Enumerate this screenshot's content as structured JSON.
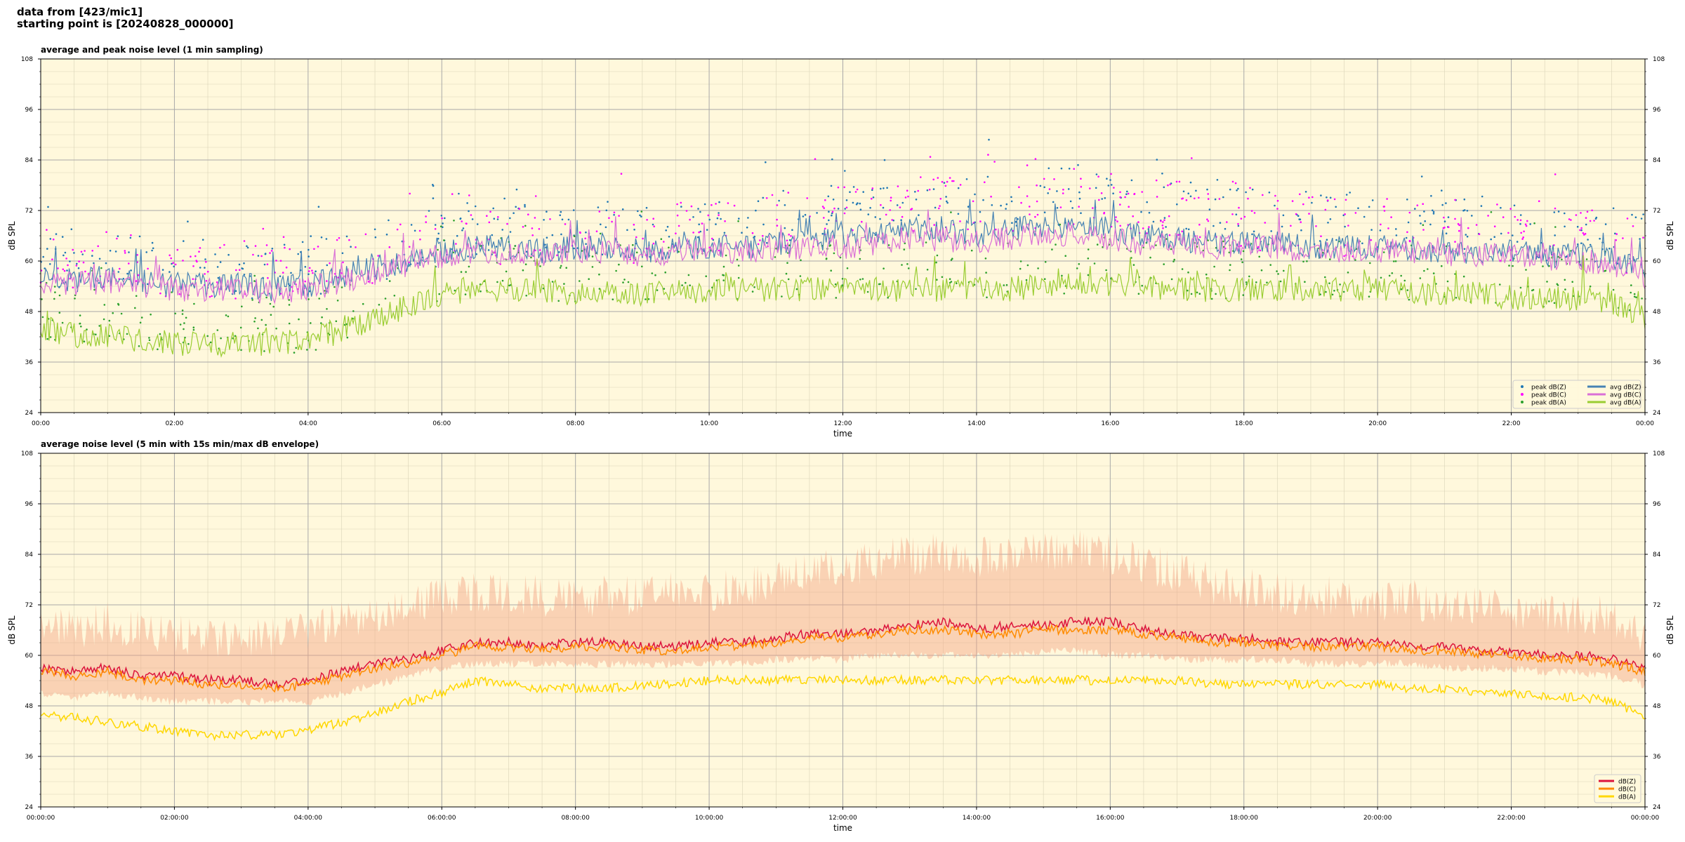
{
  "header": {
    "line1": "data from [423/mic1]",
    "line2": "starting point is [20240828_000000]"
  },
  "chart_data": [
    {
      "type": "line",
      "title": "average and peak noise level (1 min sampling)",
      "xlabel": "time",
      "ylabel": "dB SPL",
      "ylabel_right": "dB SPL",
      "xlim_hours": [
        0,
        24
      ],
      "ylim": [
        24,
        108
      ],
      "yticks": [
        24,
        36,
        48,
        60,
        72,
        84,
        96,
        108
      ],
      "xtick_labels": [
        "00:00",
        "02:00",
        "04:00",
        "06:00",
        "08:00",
        "10:00",
        "12:00",
        "14:00",
        "16:00",
        "18:00",
        "20:00",
        "22:00",
        "00:00"
      ],
      "background": "#fff8dc",
      "grid": true,
      "legend_position": "bottom-right",
      "legend_columns": 2,
      "x_hours": [
        0,
        0.5,
        1,
        1.5,
        2,
        2.5,
        3,
        3.5,
        4,
        4.5,
        5,
        5.5,
        6,
        6.5,
        7,
        7.5,
        8,
        8.5,
        9,
        9.5,
        10,
        10.5,
        11,
        11.5,
        12,
        12.5,
        13,
        13.5,
        14,
        14.5,
        15,
        15.5,
        16,
        16.5,
        17,
        17.5,
        18,
        18.5,
        19,
        19.5,
        20,
        20.5,
        21,
        21.5,
        22,
        22.5,
        23,
        23.5,
        24
      ],
      "series": [
        {
          "name": "peak dB(Z)",
          "kind": "scatter",
          "color": "#1f77b4",
          "values": [
            60,
            60,
            61,
            60,
            59,
            58,
            58,
            58,
            58,
            60,
            62,
            64,
            66,
            67,
            67,
            67,
            68,
            68,
            67,
            68,
            68,
            69,
            70,
            71,
            72,
            73,
            75,
            75,
            74,
            75,
            75,
            76,
            75,
            74,
            73,
            71,
            70,
            70,
            70,
            69,
            69,
            69,
            69,
            68,
            68,
            67,
            67,
            66,
            64
          ]
        },
        {
          "name": "peak dB(C)",
          "kind": "scatter",
          "color": "#ff00ff",
          "values": [
            59,
            59,
            60,
            59,
            58,
            57,
            57,
            57,
            57,
            59,
            61,
            63,
            65,
            66,
            66,
            66,
            67,
            67,
            66,
            67,
            67,
            68,
            69,
            70,
            71,
            72,
            74,
            74,
            73,
            74,
            74,
            75,
            74,
            73,
            72,
            70,
            69,
            69,
            69,
            68,
            68,
            68,
            68,
            67,
            67,
            66,
            66,
            65,
            63
          ]
        },
        {
          "name": "peak dB(A)",
          "kind": "scatter",
          "color": "#2ca02c",
          "values": [
            48,
            47,
            47,
            46,
            46,
            45,
            45,
            45,
            45,
            48,
            51,
            54,
            57,
            58,
            58,
            58,
            57,
            57,
            57,
            57,
            58,
            58,
            58,
            58,
            58,
            58,
            58,
            58,
            58,
            58,
            59,
            59,
            59,
            59,
            58,
            58,
            58,
            58,
            58,
            58,
            58,
            57,
            57,
            57,
            57,
            56,
            56,
            55,
            52
          ]
        },
        {
          "name": "avg dB(Z)",
          "kind": "line",
          "color": "#4682b4",
          "values": [
            56,
            55,
            56,
            55,
            54,
            54,
            54,
            53,
            54,
            56,
            58,
            60,
            62,
            63,
            63,
            62,
            63,
            63,
            62,
            63,
            63,
            63,
            64,
            65,
            65,
            66,
            67,
            67,
            66,
            67,
            68,
            68,
            67,
            66,
            65,
            64,
            64,
            64,
            63,
            63,
            63,
            63,
            62,
            62,
            62,
            61,
            61,
            60,
            57
          ]
        },
        {
          "name": "avg dB(C)",
          "kind": "line",
          "color": "#da70d6",
          "values": [
            55,
            54,
            55,
            54,
            53,
            53,
            53,
            52,
            53,
            55,
            57,
            59,
            61,
            62,
            62,
            61,
            62,
            62,
            61,
            62,
            62,
            62,
            63,
            63,
            63,
            64,
            65,
            65,
            64,
            65,
            66,
            66,
            65,
            64,
            64,
            63,
            63,
            63,
            62,
            62,
            62,
            62,
            61,
            61,
            61,
            60,
            60,
            59,
            56
          ]
        },
        {
          "name": "avg dB(A)",
          "kind": "line",
          "color": "#9acd32",
          "values": [
            44,
            42,
            42,
            41,
            40,
            40,
            40,
            40,
            41,
            43,
            46,
            49,
            52,
            53,
            53,
            53,
            52,
            52,
            52,
            52,
            53,
            53,
            53,
            53,
            53,
            53,
            53,
            53,
            53,
            53,
            54,
            54,
            54,
            54,
            53,
            53,
            53,
            53,
            53,
            53,
            53,
            52,
            52,
            52,
            51,
            51,
            51,
            50,
            46
          ]
        }
      ]
    },
    {
      "type": "area",
      "title": "average noise level (5 min with 15s min/max dB envelope)",
      "xlabel": "time",
      "ylabel": "dB SPL",
      "ylabel_right": "dB SPL",
      "xlim_hours": [
        0,
        24
      ],
      "ylim": [
        24,
        108
      ],
      "yticks": [
        24,
        36,
        48,
        60,
        72,
        84,
        96,
        108
      ],
      "xtick_labels": [
        "00:00:00",
        "02:00:00",
        "04:00:00",
        "06:00:00",
        "08:00:00",
        "10:00:00",
        "12:00:00",
        "14:00:00",
        "16:00:00",
        "18:00:00",
        "20:00:00",
        "22:00:00",
        "00:00:00"
      ],
      "background": "#fff8dc",
      "grid": true,
      "legend_position": "bottom-right",
      "legend_columns": 1,
      "x_hours": [
        0,
        0.5,
        1,
        1.5,
        2,
        2.5,
        3,
        3.5,
        4,
        4.5,
        5,
        5.5,
        6,
        6.5,
        7,
        7.5,
        8,
        8.5,
        9,
        9.5,
        10,
        10.5,
        11,
        11.5,
        12,
        12.5,
        13,
        13.5,
        14,
        14.5,
        15,
        15.5,
        16,
        16.5,
        17,
        17.5,
        18,
        18.5,
        19,
        19.5,
        20,
        20.5,
        21,
        21.5,
        22,
        22.5,
        23,
        23.5,
        24
      ],
      "envelope": {
        "color": "#f4a582",
        "max": [
          66,
          64,
          66,
          64,
          63,
          62,
          62,
          62,
          64,
          66,
          68,
          70,
          72,
          73,
          73,
          72,
          72,
          72,
          72,
          73,
          73,
          74,
          76,
          78,
          79,
          80,
          82,
          82,
          81,
          82,
          83,
          83,
          82,
          80,
          78,
          75,
          74,
          73,
          72,
          72,
          71,
          71,
          70,
          70,
          69,
          68,
          68,
          67,
          63
        ],
        "min": [
          52,
          51,
          52,
          51,
          50,
          50,
          50,
          50,
          50,
          52,
          54,
          56,
          58,
          59,
          59,
          59,
          59,
          59,
          59,
          59,
          59,
          59,
          60,
          60,
          60,
          61,
          61,
          61,
          61,
          61,
          62,
          62,
          61,
          61,
          60,
          60,
          60,
          60,
          59,
          59,
          59,
          59,
          58,
          58,
          58,
          57,
          57,
          56,
          54
        ]
      },
      "series": [
        {
          "name": "dB(Z)",
          "kind": "line",
          "color": "#dc143c",
          "values": [
            57,
            56,
            57,
            55,
            55,
            54,
            54,
            53,
            54,
            56,
            58,
            59,
            61,
            63,
            63,
            62,
            63,
            63,
            62,
            62,
            63,
            63,
            64,
            65,
            65,
            66,
            67,
            68,
            66,
            67,
            67,
            68,
            68,
            66,
            65,
            64,
            64,
            63,
            63,
            63,
            63,
            62,
            62,
            61,
            61,
            60,
            60,
            59,
            57
          ]
        },
        {
          "name": "dB(C)",
          "kind": "line",
          "color": "#ff8c00",
          "values": [
            56,
            55,
            56,
            54,
            54,
            53,
            53,
            52,
            53,
            55,
            57,
            58,
            60,
            62,
            62,
            61,
            62,
            62,
            61,
            61,
            62,
            62,
            63,
            64,
            64,
            65,
            66,
            66,
            65,
            65,
            66,
            66,
            66,
            65,
            64,
            63,
            63,
            62,
            62,
            62,
            62,
            61,
            61,
            60,
            60,
            59,
            59,
            58,
            56
          ]
        },
        {
          "name": "dB(A)",
          "kind": "line",
          "color": "#ffd700",
          "values": [
            46,
            45,
            44,
            43,
            42,
            41,
            41,
            41,
            42,
            44,
            46,
            49,
            51,
            54,
            53,
            52,
            52,
            52,
            53,
            53,
            54,
            54,
            54,
            54,
            54,
            54,
            54,
            54,
            54,
            54,
            54,
            54,
            54,
            54,
            54,
            53,
            53,
            53,
            53,
            53,
            53,
            52,
            52,
            51,
            51,
            50,
            50,
            49,
            45
          ]
        }
      ]
    }
  ]
}
